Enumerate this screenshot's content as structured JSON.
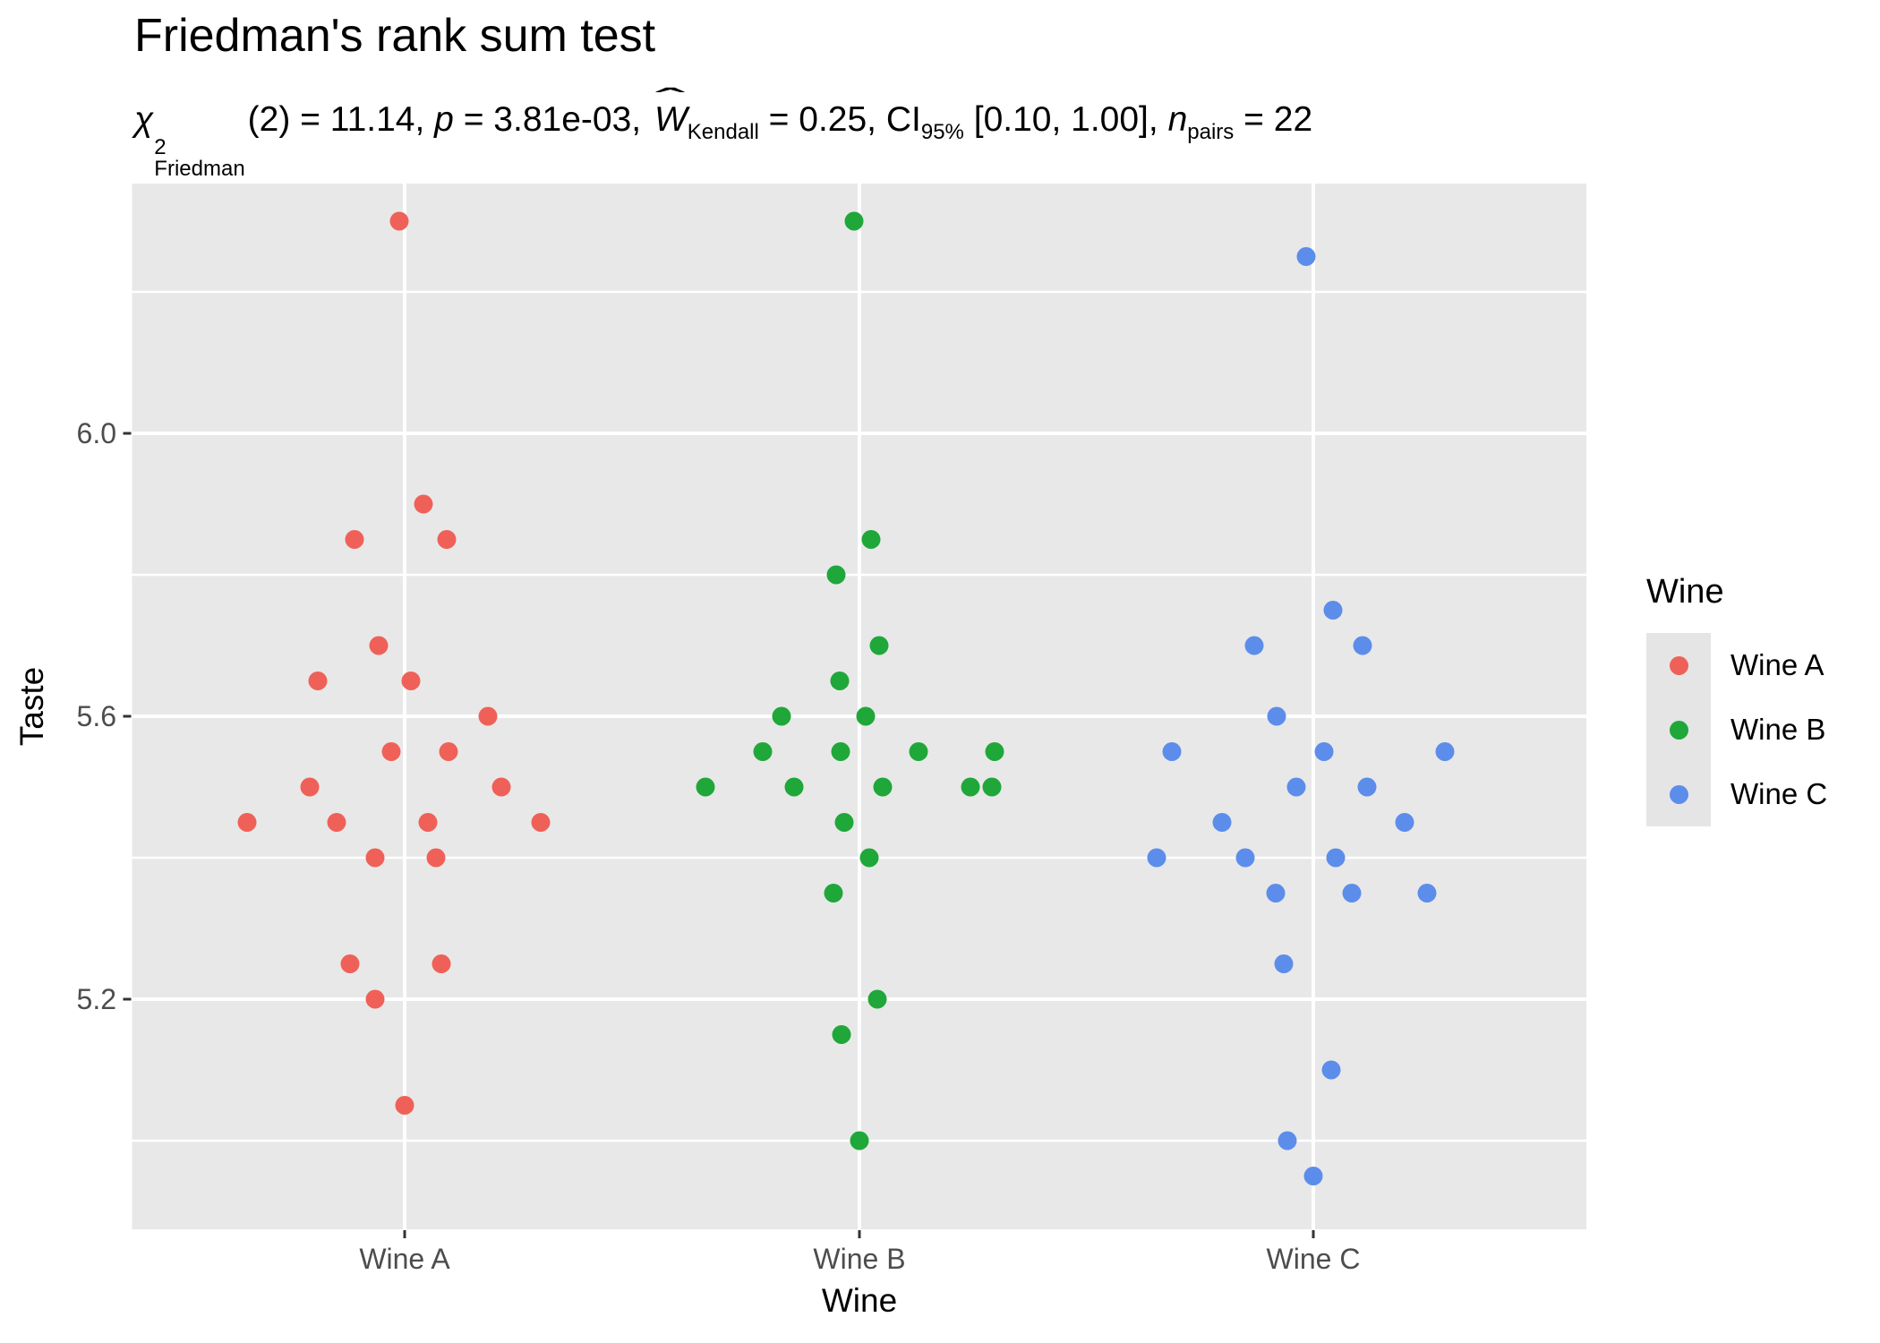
{
  "title": "Friedman's rank sum test",
  "subtitle": {
    "full_text": "χ²Friedman(2) = 11.14, p = 3.81e-03, ŴKendall = 0.25, CI95% [0.10, 1.00], npairs = 22",
    "chi": "χ",
    "chi_sup": "2",
    "chi_sub": "Friedman",
    "s1": "(2) = 11.14, ",
    "p_var": "p",
    "s2": " = 3.81e-03, ",
    "w_var": "W",
    "hat": "ˆ",
    "w_sub": "Kendall",
    "s3": " = 0.25, CI",
    "ci_sub": "95%",
    "s4": " [0.10, 1.00], ",
    "n_var": "n",
    "n_sub": "pairs",
    "s5": " = 22"
  },
  "colors": {
    "panel_bg": "#E8E8E8",
    "gridline": "#FFFFFF",
    "tick": "#333333",
    "axis_text": "#4D4D4D",
    "legend_key_bg": "#E5E5E5",
    "text": "#000000"
  },
  "chart_data": {
    "type": "scatter",
    "title": "Friedman's rank sum test",
    "subtitle_stats": {
      "test": "Friedman rank sum test",
      "chi_squared_df": 2,
      "chi_squared": 11.14,
      "p_value": "3.81e-03",
      "kendall_w": 0.25,
      "ci_level": "95%",
      "ci": [
        0.1,
        1.0
      ],
      "n_pairs": 22
    },
    "xlabel": "Wine",
    "ylabel": "Taste",
    "categories": [
      "Wine A",
      "Wine B",
      "Wine C"
    ],
    "y_axis": {
      "ticks": [
        {
          "value": 6.0,
          "label": "6.0"
        },
        {
          "value": 5.6,
          "label": "5.6"
        },
        {
          "value": 5.2,
          "label": "5.2"
        }
      ],
      "minor_gridlines": [
        6.2,
        5.8,
        5.4,
        5.0
      ],
      "range": [
        4.875,
        6.355
      ],
      "grid": true
    },
    "legend": {
      "title": "Wine",
      "position": "right",
      "entries": [
        "Wine A",
        "Wine B",
        "Wine C"
      ]
    },
    "series": [
      {
        "name": "Wine A",
        "color": "#EF6158",
        "points": [
          {
            "value": 6.3,
            "dx": -6
          },
          {
            "value": 5.9,
            "dx": 21
          },
          {
            "value": 5.85,
            "dx": -56
          },
          {
            "value": 5.85,
            "dx": 47
          },
          {
            "value": 5.7,
            "dx": -29
          },
          {
            "value": 5.65,
            "dx": -97
          },
          {
            "value": 5.65,
            "dx": 7
          },
          {
            "value": 5.6,
            "dx": 93
          },
          {
            "value": 5.55,
            "dx": -15
          },
          {
            "value": 5.55,
            "dx": 49
          },
          {
            "value": 5.5,
            "dx": -106
          },
          {
            "value": 5.5,
            "dx": 108
          },
          {
            "value": 5.45,
            "dx": -176
          },
          {
            "value": 5.45,
            "dx": -76
          },
          {
            "value": 5.45,
            "dx": 26
          },
          {
            "value": 5.45,
            "dx": 152
          },
          {
            "value": 5.4,
            "dx": -33
          },
          {
            "value": 5.4,
            "dx": 35
          },
          {
            "value": 5.25,
            "dx": -61
          },
          {
            "value": 5.25,
            "dx": 41
          },
          {
            "value": 5.2,
            "dx": -33
          },
          {
            "value": 5.05,
            "dx": 0
          }
        ]
      },
      {
        "name": "Wine B",
        "color": "#1FA73A",
        "points": [
          {
            "value": 6.3,
            "dx": -6
          },
          {
            "value": 5.85,
            "dx": 13
          },
          {
            "value": 5.8,
            "dx": -26
          },
          {
            "value": 5.7,
            "dx": 22
          },
          {
            "value": 5.65,
            "dx": -22
          },
          {
            "value": 5.6,
            "dx": -87
          },
          {
            "value": 5.6,
            "dx": 7
          },
          {
            "value": 5.55,
            "dx": -108
          },
          {
            "value": 5.55,
            "dx": -21
          },
          {
            "value": 5.55,
            "dx": 66
          },
          {
            "value": 5.55,
            "dx": 151
          },
          {
            "value": 5.5,
            "dx": -172
          },
          {
            "value": 5.5,
            "dx": -73
          },
          {
            "value": 5.5,
            "dx": 26
          },
          {
            "value": 5.5,
            "dx": 124
          },
          {
            "value": 5.5,
            "dx": 148
          },
          {
            "value": 5.45,
            "dx": -17
          },
          {
            "value": 5.4,
            "dx": 11
          },
          {
            "value": 5.35,
            "dx": -29
          },
          {
            "value": 5.2,
            "dx": 20
          },
          {
            "value": 5.15,
            "dx": -20
          },
          {
            "value": 5.0,
            "dx": 0
          }
        ]
      },
      {
        "name": "Wine C",
        "color": "#5C8DEB",
        "points": [
          {
            "value": 6.25,
            "dx": -8
          },
          {
            "value": 5.75,
            "dx": 22
          },
          {
            "value": 5.7,
            "dx": -66
          },
          {
            "value": 5.7,
            "dx": 55
          },
          {
            "value": 5.6,
            "dx": -41
          },
          {
            "value": 5.55,
            "dx": -158
          },
          {
            "value": 5.55,
            "dx": 12
          },
          {
            "value": 5.55,
            "dx": 147
          },
          {
            "value": 5.5,
            "dx": -19
          },
          {
            "value": 5.5,
            "dx": 60
          },
          {
            "value": 5.45,
            "dx": -102
          },
          {
            "value": 5.45,
            "dx": 102
          },
          {
            "value": 5.4,
            "dx": -175
          },
          {
            "value": 5.4,
            "dx": -76
          },
          {
            "value": 5.4,
            "dx": 25
          },
          {
            "value": 5.35,
            "dx": -42
          },
          {
            "value": 5.35,
            "dx": 43
          },
          {
            "value": 5.35,
            "dx": 127
          },
          {
            "value": 5.25,
            "dx": -33
          },
          {
            "value": 5.1,
            "dx": 20
          },
          {
            "value": 5.0,
            "dx": -29
          },
          {
            "value": 4.95,
            "dx": 0
          }
        ]
      }
    ]
  }
}
